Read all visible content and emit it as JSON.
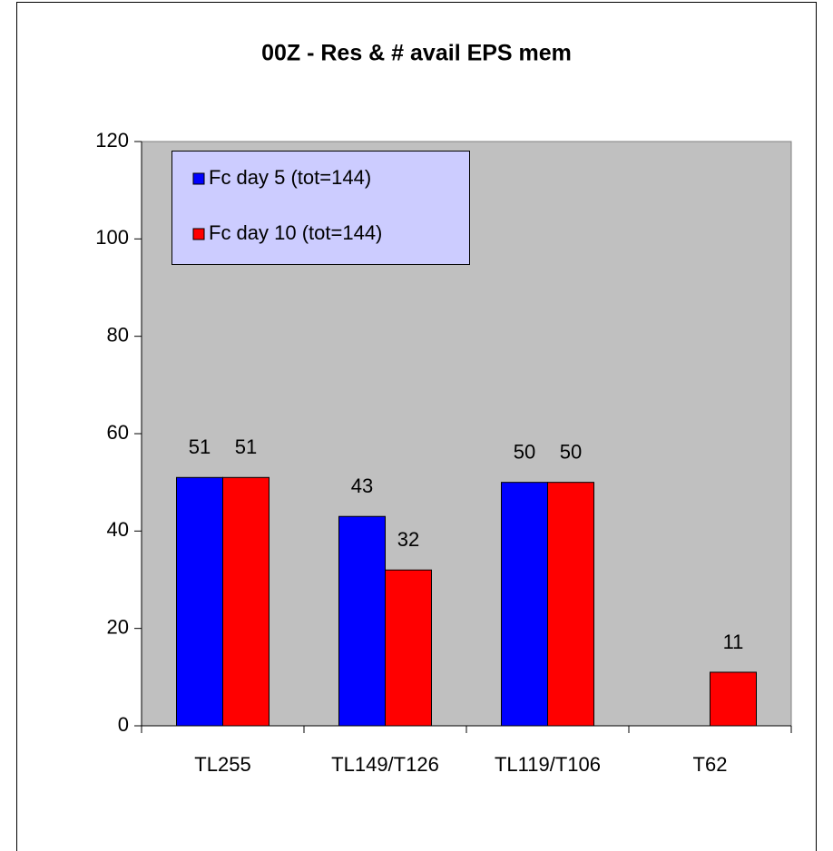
{
  "chart_data": {
    "type": "bar",
    "title": "00Z - Res & # avail EPS mem",
    "categories": [
      "TL255",
      "TL149/T126",
      "TL119/T106",
      "T62"
    ],
    "series": [
      {
        "name": "Fc day 5 (tot=144)",
        "color": "#0000ff",
        "values": [
          51,
          43,
          50,
          null
        ]
      },
      {
        "name": "Fc day 10 (tot=144)",
        "color": "#ff0000",
        "values": [
          51,
          32,
          50,
          11
        ]
      }
    ],
    "ylim": [
      0,
      120
    ],
    "yticks": [
      0,
      20,
      40,
      60,
      80,
      100,
      120
    ],
    "legend": "upper left",
    "plot_background": "#c0c0c0"
  }
}
